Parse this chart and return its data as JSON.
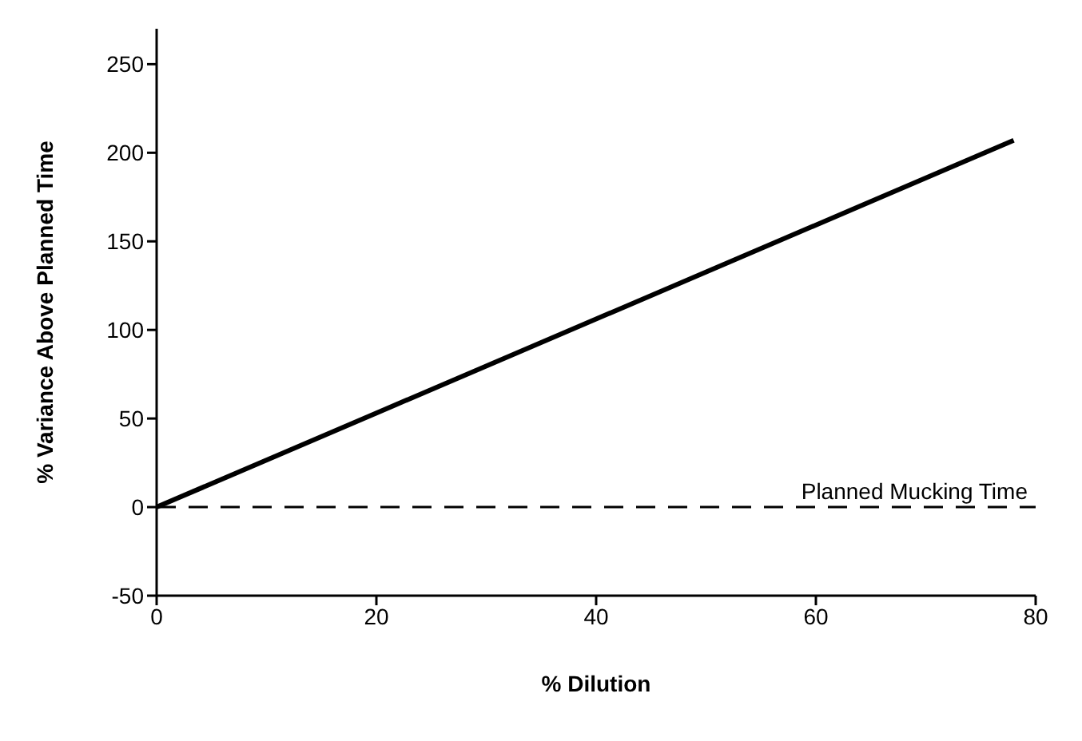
{
  "chart_data": {
    "type": "line",
    "xlabel": "% Dilution",
    "ylabel": "% Variance Above Planned Time",
    "series": [
      {
        "color": "#000000",
        "x": [
          0,
          78
        ],
        "values": [
          0,
          207
        ]
      }
    ],
    "xlim": [
      0,
      80
    ],
    "xticks": [
      0,
      20,
      40,
      60,
      80
    ],
    "ylim": [
      -50,
      270
    ],
    "yticks": [
      -50,
      0,
      50,
      100,
      150,
      200,
      250
    ],
    "grid": false,
    "legend": false,
    "marker": "none",
    "line_style": "solid",
    "ref_lines": [
      {
        "axis": "y",
        "value": 0,
        "label": "Planned Mucking Time",
        "color": "#000000",
        "line_style": "dashed"
      }
    ]
  }
}
